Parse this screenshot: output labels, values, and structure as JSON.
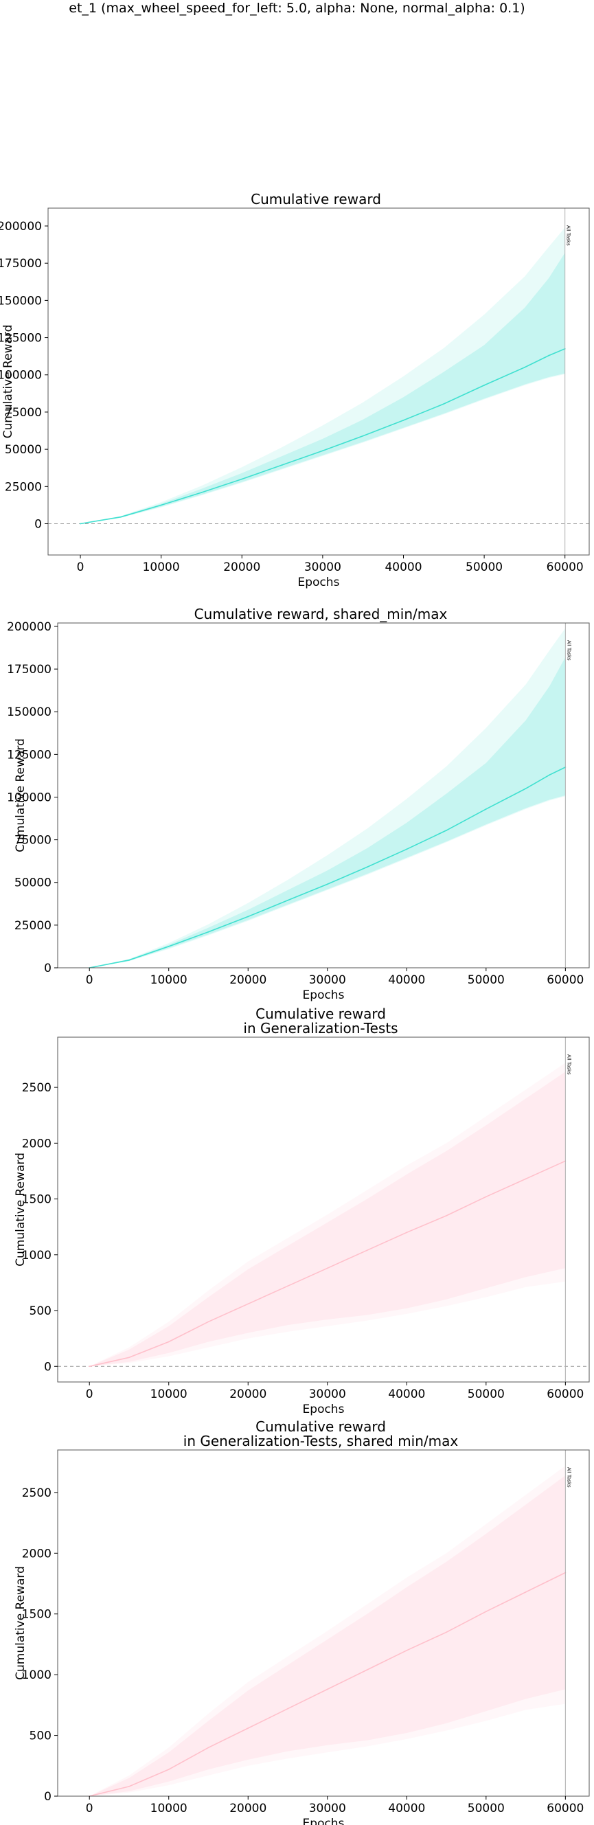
{
  "suptitle": "et_1 (max_wheel_speed_for_left: 5.0, alpha: None, normal_alpha: 0.1)",
  "colors": {
    "reward": "#40E0D0",
    "generalization": "#FFC0CB"
  },
  "chart_data": [
    {
      "type": "line",
      "title": "Cumulative reward",
      "xlabel": "Epochs",
      "ylabel": "Cumulative Reward",
      "xlim": [
        -4000,
        63000
      ],
      "ylim": [
        -21000,
        212000
      ],
      "xticks": [
        0,
        10000,
        20000,
        30000,
        40000,
        50000,
        60000
      ],
      "yticks": [
        0,
        25000,
        50000,
        75000,
        100000,
        125000,
        150000,
        175000,
        200000
      ],
      "hline": 0,
      "vline": {
        "x": 60000,
        "label": "All Tasks"
      },
      "grid": false,
      "color": "#40E0D0",
      "series": [
        {
          "x": [
            0,
            5000,
            10000,
            15000,
            20000,
            25000,
            30000,
            35000,
            40000,
            45000,
            50000,
            55000,
            58000,
            60000
          ],
          "mean": [
            0,
            4500,
            12500,
            21000,
            30000,
            39500,
            49000,
            59000,
            69500,
            80500,
            93000,
            105000,
            113000,
            117500
          ],
          "band_inner_low": [
            0,
            4000,
            11500,
            19500,
            28000,
            37000,
            46000,
            55000,
            64500,
            74000,
            84000,
            93500,
            98500,
            101000
          ],
          "band_inner_high": [
            0,
            5000,
            13500,
            23500,
            34000,
            45500,
            57000,
            70000,
            85000,
            102000,
            120000,
            145000,
            165000,
            182000
          ],
          "band_outer_low": [
            0,
            4000,
            11000,
            19000,
            27500,
            36500,
            45500,
            54500,
            64000,
            73500,
            83500,
            93000,
            98000,
            100500
          ],
          "band_outer_high": [
            0,
            5200,
            14500,
            25500,
            38000,
            51500,
            66000,
            81500,
            99000,
            118000,
            140500,
            166000,
            186000,
            199000
          ]
        }
      ]
    },
    {
      "type": "line",
      "title": "Cumulative reward, shared_min/max",
      "xlabel": "Epochs",
      "ylabel": "Cumulative Reward",
      "xlim": [
        -4000,
        63000
      ],
      "ylim": [
        0,
        202000
      ],
      "xticks": [
        0,
        10000,
        20000,
        30000,
        40000,
        50000,
        60000
      ],
      "yticks": [
        0,
        25000,
        50000,
        75000,
        100000,
        125000,
        150000,
        175000,
        200000
      ],
      "vline": {
        "x": 60000,
        "label": "All Tasks"
      },
      "grid": false,
      "color": "#40E0D0",
      "series": [
        {
          "x": [
            0,
            5000,
            10000,
            15000,
            20000,
            25000,
            30000,
            35000,
            40000,
            45000,
            50000,
            55000,
            58000,
            60000
          ],
          "mean": [
            0,
            4500,
            12500,
            21000,
            30000,
            39500,
            49000,
            59000,
            69500,
            80500,
            93000,
            105000,
            113000,
            117500
          ],
          "band_inner_low": [
            0,
            4000,
            11500,
            19500,
            28000,
            37000,
            46000,
            55000,
            64500,
            74000,
            84000,
            93500,
            98500,
            101000
          ],
          "band_inner_high": [
            0,
            5000,
            13500,
            23500,
            34000,
            45500,
            57000,
            70000,
            85000,
            102000,
            120000,
            145000,
            165000,
            182000
          ],
          "band_outer_low": [
            0,
            4000,
            11000,
            19000,
            27500,
            36500,
            45500,
            54500,
            64000,
            73500,
            83500,
            93000,
            98000,
            100500
          ],
          "band_outer_high": [
            0,
            5200,
            14500,
            25500,
            38000,
            51500,
            66000,
            81500,
            99000,
            118000,
            140500,
            166000,
            186000,
            199000
          ]
        }
      ]
    },
    {
      "type": "line",
      "title": "Cumulative reward\nin Generalization-Tests",
      "xlabel": "Epochs",
      "ylabel": "Cumulative Reward",
      "xlim": [
        -4000,
        63000
      ],
      "ylim": [
        -140,
        2950
      ],
      "xticks": [
        0,
        10000,
        20000,
        30000,
        40000,
        50000,
        60000
      ],
      "yticks": [
        0,
        500,
        1000,
        1500,
        2000,
        2500
      ],
      "hline": 0,
      "vline": {
        "x": 60000,
        "label": "All Tasks"
      },
      "grid": false,
      "color": "#FFC0CB",
      "series": [
        {
          "x": [
            0,
            5000,
            10000,
            15000,
            20000,
            25000,
            30000,
            35000,
            40000,
            45000,
            50000,
            55000,
            60000
          ],
          "mean": [
            0,
            80,
            220,
            400,
            560,
            720,
            880,
            1040,
            1200,
            1350,
            1520,
            1680,
            1840
          ],
          "band_inner_low": [
            0,
            40,
            120,
            220,
            300,
            370,
            420,
            460,
            520,
            600,
            700,
            800,
            880
          ],
          "band_inner_high": [
            0,
            150,
            360,
            620,
            870,
            1080,
            1290,
            1500,
            1720,
            1930,
            2160,
            2400,
            2640
          ],
          "band_outer_low": [
            0,
            30,
            90,
            170,
            250,
            310,
            360,
            410,
            470,
            540,
            620,
            710,
            760
          ],
          "band_outer_high": [
            0,
            170,
            400,
            680,
            940,
            1150,
            1360,
            1580,
            1800,
            2000,
            2240,
            2480,
            2720
          ]
        }
      ]
    },
    {
      "type": "line",
      "title": "Cumulative reward\nin Generalization-Tests, shared min/max",
      "xlabel": "Epochs",
      "ylabel": "Cumulative Reward",
      "xlim": [
        -4000,
        63000
      ],
      "ylim": [
        0,
        2850
      ],
      "xticks": [
        0,
        10000,
        20000,
        30000,
        40000,
        50000,
        60000
      ],
      "yticks": [
        0,
        500,
        1000,
        1500,
        2000,
        2500
      ],
      "vline": {
        "x": 60000,
        "label": "All Tasks"
      },
      "grid": false,
      "color": "#FFC0CB",
      "series": [
        {
          "x": [
            0,
            5000,
            10000,
            15000,
            20000,
            25000,
            30000,
            35000,
            40000,
            45000,
            50000,
            55000,
            60000
          ],
          "mean": [
            0,
            80,
            220,
            400,
            560,
            720,
            880,
            1040,
            1200,
            1350,
            1520,
            1680,
            1840
          ],
          "band_inner_low": [
            0,
            40,
            120,
            220,
            300,
            370,
            420,
            460,
            520,
            600,
            700,
            800,
            880
          ],
          "band_inner_high": [
            0,
            150,
            360,
            620,
            870,
            1080,
            1290,
            1500,
            1720,
            1930,
            2160,
            2400,
            2640
          ],
          "band_outer_low": [
            0,
            30,
            90,
            170,
            250,
            310,
            360,
            410,
            470,
            540,
            620,
            710,
            760
          ],
          "band_outer_high": [
            0,
            170,
            400,
            680,
            940,
            1150,
            1360,
            1580,
            1800,
            2000,
            2240,
            2480,
            2720
          ]
        }
      ]
    }
  ]
}
